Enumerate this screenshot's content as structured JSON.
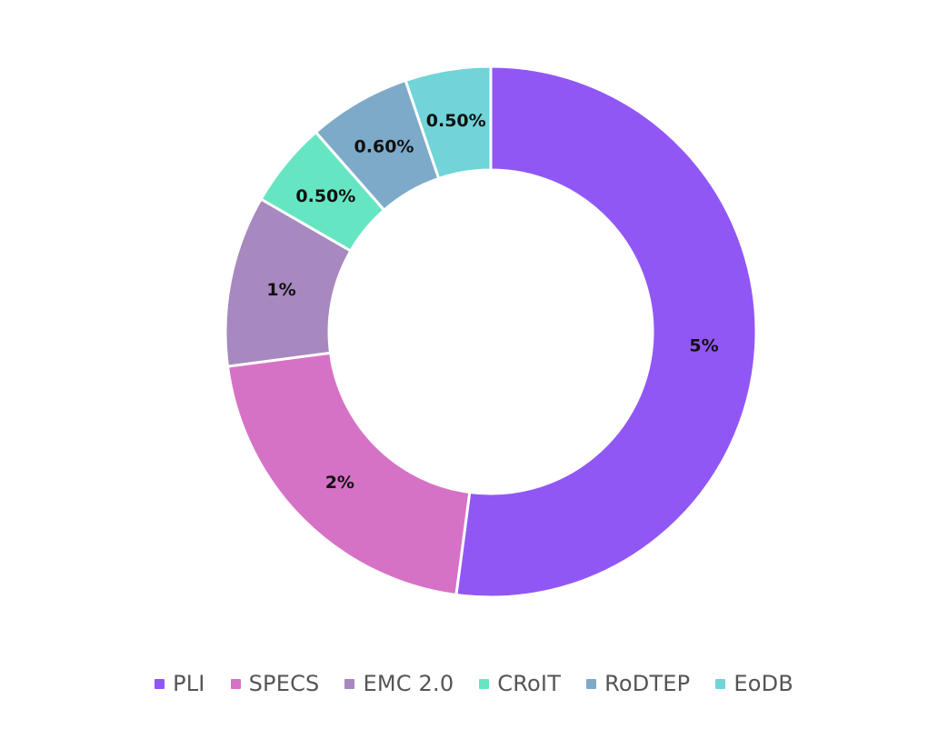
{
  "chart_data": {
    "type": "pie",
    "donut": true,
    "title": "",
    "legend_position": "bottom-center",
    "slices": [
      {
        "name": "PLI",
        "value": 5,
        "label": "5%",
        "color": "#9157f5"
      },
      {
        "name": "SPECS",
        "value": 2,
        "label": "2%",
        "color": "#d672c6"
      },
      {
        "name": "EMC 2.0",
        "value": 1,
        "label": "1%",
        "color": "#a788bf"
      },
      {
        "name": "CRoIT",
        "value": 0.5,
        "label": "0.50%",
        "color": "#66e5c3"
      },
      {
        "name": "RoDTEP",
        "value": 0.6,
        "label": "0.60%",
        "color": "#7eaac9"
      },
      {
        "name": "EoDB",
        "value": 0.5,
        "label": "0.50%",
        "color": "#70d4d8"
      }
    ]
  }
}
